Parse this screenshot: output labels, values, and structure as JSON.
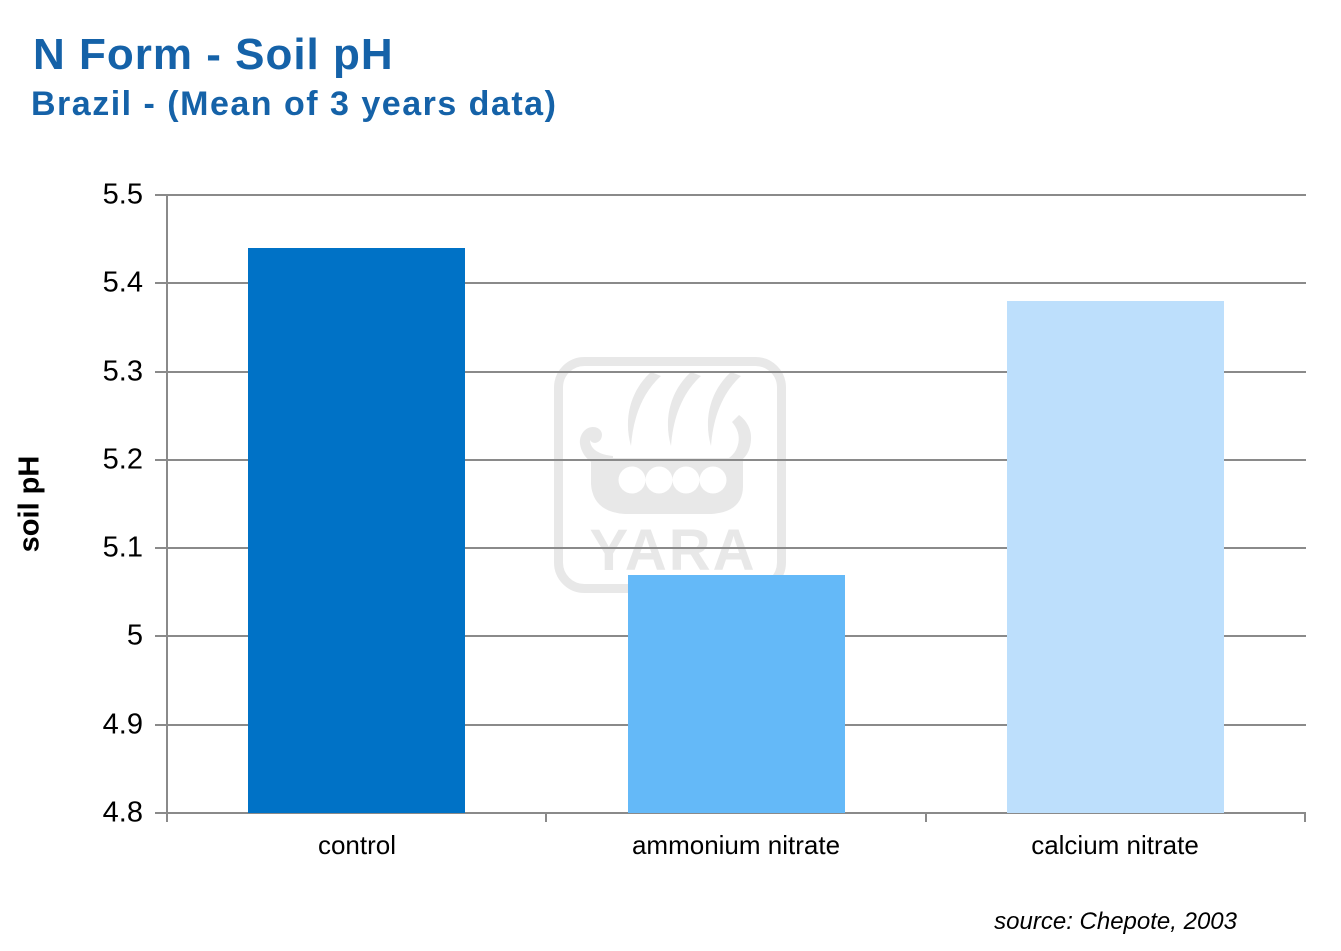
{
  "page": {
    "title": "N Form - Soil pH",
    "subtitle": "Brazil - (Mean of 3 years data)",
    "title_color": "#1562A8",
    "background_color": "#FFFFFF"
  },
  "watermark": {
    "icon": "yara-viking-ship-logo",
    "text": "YARA",
    "color": "#E8E8E8"
  },
  "chart_data": {
    "type": "bar",
    "title": "N Form - Soil pH",
    "subtitle": "Brazil - (Mean of 3 years data)",
    "categories": [
      "control",
      "ammonium nitrate",
      "calcium nitrate"
    ],
    "values": [
      5.44,
      5.07,
      5.38
    ],
    "bar_colors": [
      "#0072C6",
      "#64B9F8",
      "#BDDFFC"
    ],
    "xlabel": "",
    "ylabel": "soil pH",
    "ylim": [
      4.8,
      5.5
    ],
    "ytick_step": 0.1,
    "yticks": [
      "5.5",
      "5.4",
      "5.3",
      "5.2",
      "5.1",
      "5",
      "4.9",
      "4.8"
    ],
    "grid": true,
    "gridline_color": "#8A8A8A",
    "legend": "none",
    "source": "source: Chepote, 2003"
  }
}
